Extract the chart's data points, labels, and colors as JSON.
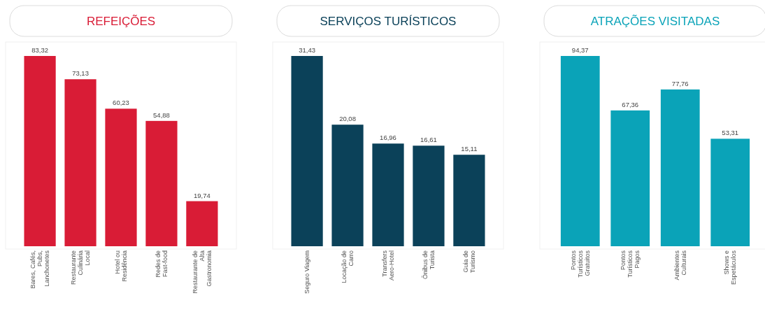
{
  "chart_data": [
    {
      "type": "bar",
      "title": "REFEIÇÕES",
      "categories": [
        "Bares, Cafés, Pubs, Lanchonetes",
        "Restaurante Culinária Local",
        "Hotel ou Residência",
        "Redes de Fast-food",
        "Restaurante de Alta Gastronomia"
      ],
      "values": [
        83.32,
        73.13,
        60.23,
        54.88,
        19.74
      ],
      "color": "#d91c36",
      "value_labels": [
        "83,32",
        "73,13",
        "60,23",
        "54,88",
        "19,74"
      ]
    },
    {
      "type": "bar",
      "title": "SERVIÇOS TURÍSTICOS",
      "categories": [
        "Seguro Viagem",
        "Locação de Carro",
        "Transfers Aero-Hotel",
        "Ônibus de Turista",
        "Guia de Turismo"
      ],
      "values": [
        31.43,
        20.08,
        16.96,
        16.61,
        15.11
      ],
      "color": "#0b4159",
      "value_labels": [
        "31,43",
        "20,08",
        "16,96",
        "16,61",
        "15,11"
      ]
    },
    {
      "type": "bar",
      "title": "ATRAÇÕES VISITADAS",
      "categories": [
        "Pontos Turísticos Gratuitos",
        "Pontos Turísticos Pagos",
        "Ambientes Culturais",
        "Shows e Espetáculos"
      ],
      "values": [
        94.37,
        67.36,
        77.76,
        53.31
      ],
      "color": "#0aa3b8",
      "value_labels": [
        "94,37",
        "67,36",
        "77,76",
        "53,31"
      ]
    }
  ]
}
